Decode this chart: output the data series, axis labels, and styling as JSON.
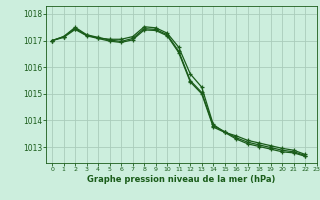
{
  "title": "Graphe pression niveau de la mer (hPa)",
  "background_color": "#cceedd",
  "grid_color": "#aaccbb",
  "line_color": "#1a5c1a",
  "xlim": [
    -0.5,
    23
  ],
  "ylim": [
    1012.4,
    1018.3
  ],
  "yticks": [
    1013,
    1014,
    1015,
    1016,
    1017,
    1018
  ],
  "xticks": [
    0,
    1,
    2,
    3,
    4,
    5,
    6,
    7,
    8,
    9,
    10,
    11,
    12,
    13,
    14,
    15,
    16,
    17,
    18,
    19,
    20,
    21,
    22,
    23
  ],
  "series": [
    [
      1017.0,
      1017.15,
      1017.45,
      1017.2,
      1017.1,
      1017.05,
      1017.05,
      1017.15,
      1017.52,
      1017.48,
      1017.28,
      1016.75,
      1015.75,
      1015.25,
      1013.85,
      1013.55,
      1013.42,
      1013.25,
      1013.15,
      1013.05,
      1012.95,
      1012.88,
      1012.72
    ],
    [
      1017.0,
      1017.15,
      1017.5,
      1017.22,
      1017.12,
      1017.02,
      1016.97,
      1017.08,
      1017.45,
      1017.42,
      1017.22,
      1016.6,
      1015.5,
      1015.05,
      1013.8,
      1013.58,
      1013.35,
      1013.18,
      1013.08,
      1012.98,
      1012.88,
      1012.82,
      1012.68
    ],
    [
      1017.0,
      1017.12,
      1017.42,
      1017.18,
      1017.08,
      1016.98,
      1016.93,
      1017.03,
      1017.4,
      1017.38,
      1017.18,
      1016.55,
      1015.45,
      1015.0,
      1013.75,
      1013.55,
      1013.3,
      1013.12,
      1013.02,
      1012.92,
      1012.82,
      1012.78,
      1012.65
    ]
  ]
}
